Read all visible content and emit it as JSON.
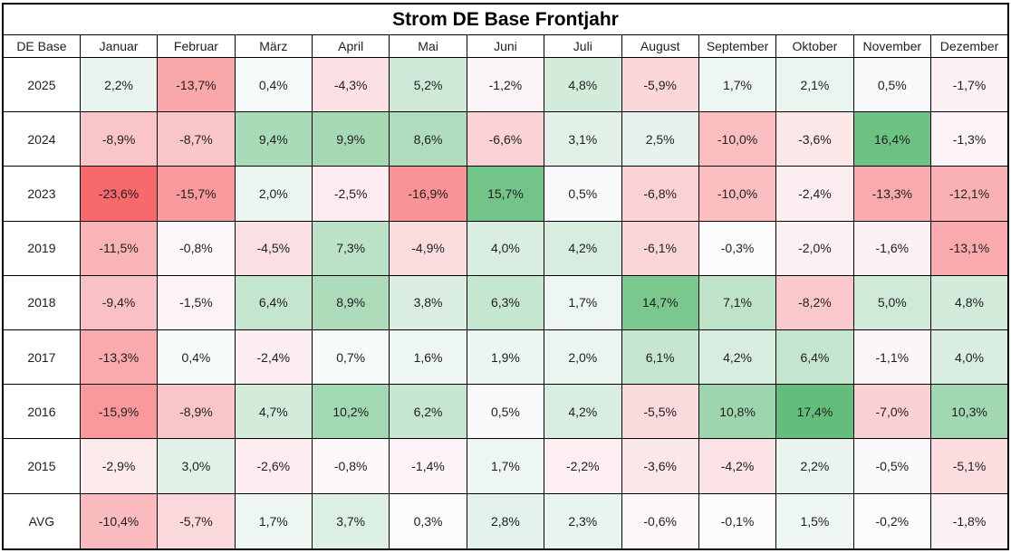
{
  "table": {
    "corner_label": "DE Base"
  },
  "heatmap_scale": {
    "negative_color": "#F8696B",
    "midpoint_color": "#FCFCFF",
    "positive_color": "#63BE7B",
    "min_value": -23.6,
    "mid_value": 0,
    "max_value": 17.4
  },
  "chart_data": {
    "type": "heatmap",
    "title": "Strom DE Base Frontjahr",
    "unit": "%",
    "number_format": "german-decimal-comma-one-decimal",
    "x_labels": [
      "Januar",
      "Februar",
      "März",
      "April",
      "Mai",
      "Juni",
      "Juli",
      "August",
      "September",
      "Oktober",
      "November",
      "Dezember"
    ],
    "y_labels": [
      "2025",
      "2024",
      "2023",
      "2019",
      "2018",
      "2017",
      "2016",
      "2015",
      "AVG"
    ],
    "values": [
      [
        2.2,
        -13.7,
        0.4,
        -4.3,
        5.2,
        -1.2,
        4.8,
        -5.9,
        1.7,
        2.1,
        0.5,
        -1.7
      ],
      [
        -8.9,
        -8.7,
        9.4,
        9.9,
        8.6,
        -6.6,
        3.1,
        2.5,
        -10.0,
        -3.6,
        16.4,
        -1.3
      ],
      [
        -23.6,
        -15.7,
        2.0,
        -2.5,
        -16.9,
        15.7,
        0.5,
        -6.8,
        -10.0,
        -2.4,
        -13.3,
        -12.1
      ],
      [
        -11.5,
        -0.8,
        -4.5,
        7.3,
        -4.9,
        4.0,
        4.2,
        -6.1,
        -0.3,
        -2.0,
        -1.6,
        -13.1
      ],
      [
        -9.4,
        -1.5,
        6.4,
        8.9,
        3.8,
        6.3,
        1.7,
        14.7,
        7.1,
        -8.2,
        5.0,
        4.8
      ],
      [
        -13.3,
        0.4,
        -2.4,
        0.7,
        1.6,
        1.9,
        2.0,
        6.1,
        4.2,
        6.4,
        -1.1,
        4.0
      ],
      [
        -15.9,
        -8.9,
        4.7,
        10.2,
        6.2,
        0.5,
        4.2,
        -5.5,
        10.8,
        17.4,
        -7.0,
        10.3
      ],
      [
        -2.9,
        3.0,
        -2.6,
        -0.8,
        -1.4,
        1.7,
        -2.2,
        -3.6,
        -4.2,
        2.2,
        -0.5,
        -5.1
      ],
      [
        -10.4,
        -5.7,
        1.7,
        3.7,
        0.3,
        2.8,
        2.3,
        -0.6,
        -0.1,
        1.5,
        -0.2,
        -1.8
      ]
    ],
    "color_scale": {
      "min": {
        "value": -23.6,
        "color": "#F8696B"
      },
      "mid": {
        "value": 0,
        "color": "#FCFCFF"
      },
      "max": {
        "value": 17.4,
        "color": "#63BE7B"
      }
    },
    "legend": "none",
    "grid": "black cell borders"
  }
}
